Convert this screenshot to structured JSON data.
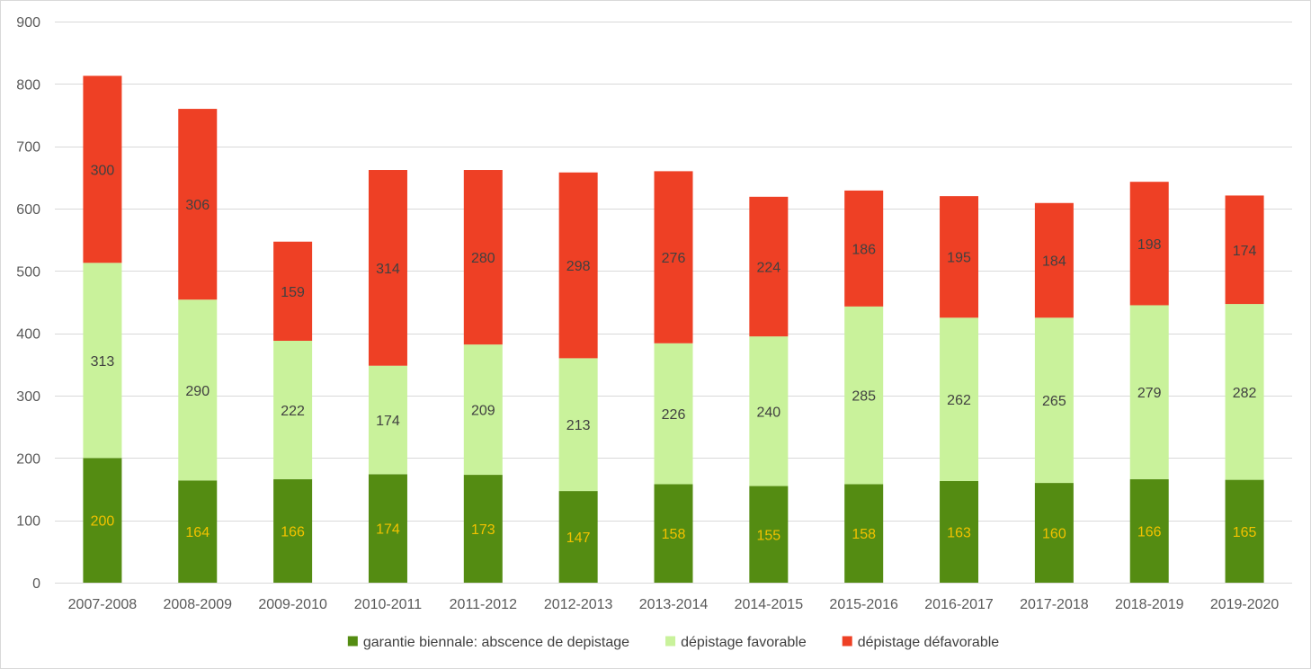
{
  "chart_data": {
    "type": "bar",
    "stacked": true,
    "title": "",
    "xlabel": "",
    "ylabel": "",
    "ylim": [
      0,
      900
    ],
    "yticks": [
      0,
      100,
      200,
      300,
      400,
      500,
      600,
      700,
      800,
      900
    ],
    "grid": true,
    "legend_position": "bottom",
    "categories": [
      "2007-2008",
      "2008-2009",
      "2009-2010",
      "2010-2011",
      "2011-2012",
      "2012-2013",
      "2013-2014",
      "2014-2015",
      "2015-2016",
      "2016-2017",
      "2017-2018",
      "2018-2019",
      "2019-2020"
    ],
    "series": [
      {
        "name": "garantie biennale: abscence de depistage",
        "color": "#548c12",
        "label_color": "#f2c200",
        "values": [
          200,
          164,
          166,
          174,
          173,
          147,
          158,
          155,
          158,
          163,
          160,
          166,
          165
        ]
      },
      {
        "name": "dépistage favorable",
        "color": "#c9f29b",
        "label_color": "#404040",
        "values": [
          313,
          290,
          222,
          174,
          209,
          213,
          226,
          240,
          285,
          262,
          265,
          279,
          282
        ]
      },
      {
        "name": "dépistage défavorable",
        "color": "#ee4025",
        "label_color": "#404040",
        "values": [
          300,
          306,
          159,
          314,
          280,
          298,
          276,
          224,
          186,
          195,
          184,
          198,
          174
        ]
      }
    ]
  }
}
